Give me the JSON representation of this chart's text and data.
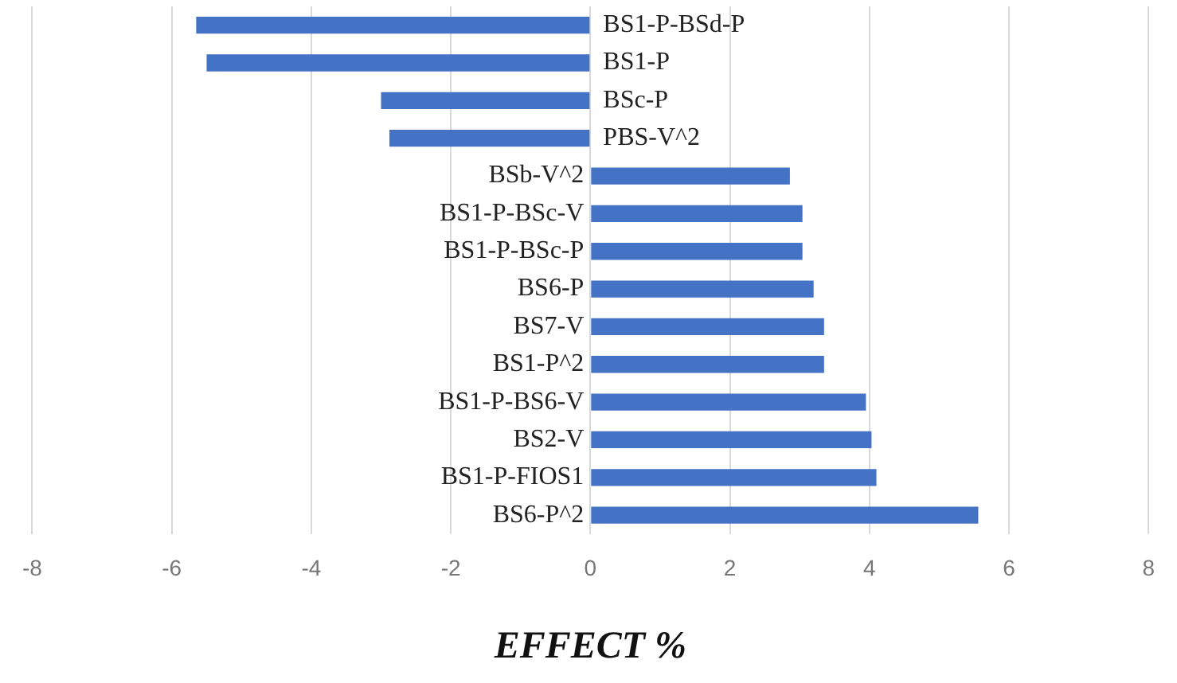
{
  "chart_data": {
    "type": "bar",
    "orientation": "horizontal",
    "xlabel": "EFFECT %",
    "categories": [
      "BS1-P-BSd-P",
      "BS1-P",
      "BSc-P",
      "PBS-V^2",
      "BSb-V^2",
      "BS1-P-BSc-V",
      "BS1-P-BSc-P",
      "BS6-P",
      "BS7-V",
      "BS1-P^2",
      "BS1-P-BS6-V",
      "BS2-V",
      "BS1-P-FIOS1",
      "BS6-P^2"
    ],
    "values": [
      -5.65,
      -5.5,
      -3.0,
      -2.88,
      2.86,
      3.04,
      3.04,
      3.2,
      3.35,
      3.35,
      3.95,
      4.03,
      4.1,
      5.56
    ],
    "color": "#4472c4",
    "xlim": [
      -8,
      8
    ],
    "xticks": [
      -8,
      -6,
      -4,
      -2,
      0,
      2,
      4,
      6,
      8
    ],
    "grid": "x",
    "legend": false
  }
}
